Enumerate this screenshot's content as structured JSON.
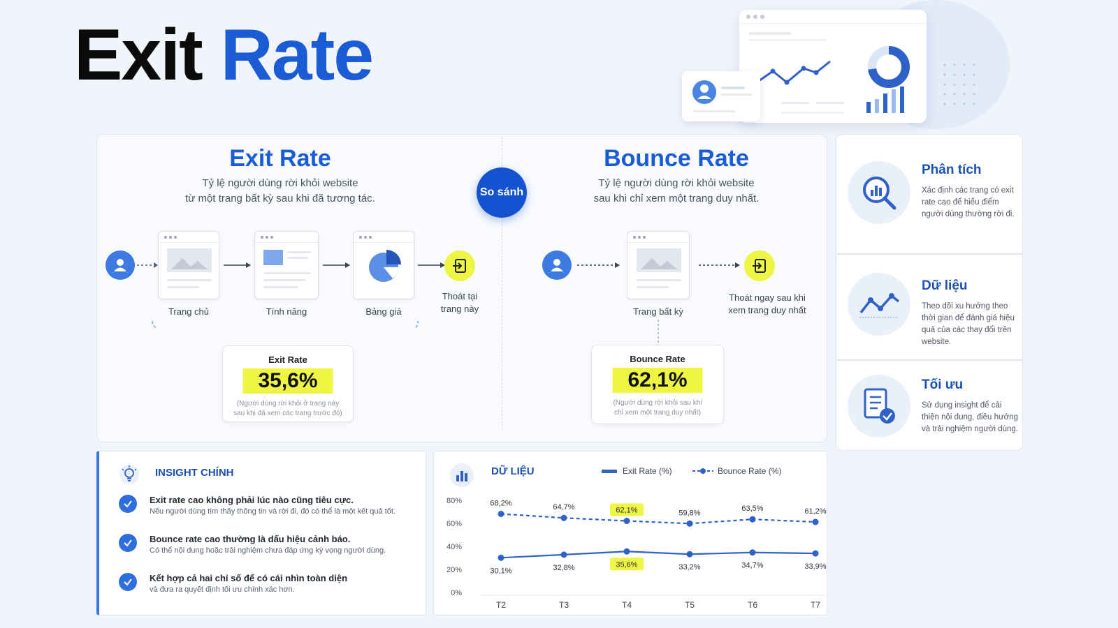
{
  "title": {
    "word1": "Exit",
    "word2": "Rate"
  },
  "comparison": {
    "exit": {
      "title": "Exit Rate",
      "desc_line1": "Tỷ lệ người dùng rời khỏi website",
      "desc_line2": "từ một trang bất kỳ sau khi đã tương tác.",
      "pages": [
        "Trang chủ",
        "Tính năng",
        "Bảng giá"
      ],
      "exit_label_line1": "Thoát tại",
      "exit_label_line2": "trang này",
      "result_title": "Exit Rate",
      "result_value": "35,6%",
      "result_note_line1": "(Người dùng rời khỏi ở trang này",
      "result_note_line2": "sau khi đã xem các trang trước đó)"
    },
    "compare_label": "So sánh",
    "bounce": {
      "title": "Bounce Rate",
      "desc_line1": "Tỷ lệ người dùng rời khỏi website",
      "desc_line2": "sau khi chỉ xem một trang duy nhất.",
      "page": "Trang bất kỳ",
      "exit_label_line1": "Thoát ngay sau khi",
      "exit_label_line2": "xem trang duy nhất",
      "result_title": "Bounce Rate",
      "result_value": "62,1%",
      "result_note_line1": "(Người dùng rời khỏi sau khi",
      "result_note_line2": "chỉ xem một trang duy nhất)"
    }
  },
  "side_cards": [
    {
      "title": "Phân tích",
      "text": "Xác định các trang có exit rate cao để hiểu điểm người dùng thường rời đi.",
      "icon": "magnifier-chart-icon"
    },
    {
      "title": "Dữ liệu",
      "text": "Theo dõi xu hướng theo thời gian để đánh giá hiệu quả của các thay đổi trên website.",
      "icon": "trend-line-icon"
    },
    {
      "title": "Tối ưu",
      "text": "Sử dụng insight để cải thiện nội dung, điều hướng và trải nghiệm người dùng.",
      "icon": "document-check-icon"
    }
  ],
  "insight": {
    "title": "INSIGHT CHÍNH",
    "items": [
      {
        "title": "Exit rate cao không phải lúc nào cũng tiêu cực.",
        "sub": "Nếu người dùng tìm thấy thông tin và rời đi, đó có thể là một kết quả tốt."
      },
      {
        "title": "Bounce rate cao thường là dấu hiệu cảnh báo.",
        "sub": "Có thể nội dung hoặc trải nghiệm chưa đáp ứng kỳ vọng người dùng."
      },
      {
        "title": "Kết hợp cả hai chỉ số để có cái nhìn toàn diện",
        "sub": "và đưa ra quyết định tối ưu chính xác hơn."
      }
    ]
  },
  "chart_data": {
    "type": "line",
    "title": "DỮ LIỆU",
    "categories": [
      "T2",
      "T3",
      "T4",
      "T5",
      "T6",
      "T7"
    ],
    "series": [
      {
        "name": "Exit Rate (%)",
        "values": [
          30.1,
          32.8,
          35.6,
          33.2,
          34.7,
          33.9
        ],
        "labels": [
          "30,1%",
          "32,8%",
          "35,6%",
          "33,2%",
          "34,7%",
          "33,9%"
        ],
        "style": "solid",
        "highlight_index": 2
      },
      {
        "name": "Bounce Rate (%)",
        "values": [
          68.2,
          64.7,
          62.1,
          59.8,
          63.5,
          61.2
        ],
        "labels": [
          "68,2%",
          "64,7%",
          "62,1%",
          "59,8%",
          "63,5%",
          "61,2%"
        ],
        "style": "dashed",
        "highlight_index": 2
      }
    ],
    "y_ticks": [
      "0%",
      "20%",
      "40%",
      "60%",
      "80%"
    ],
    "ylim": [
      0,
      80
    ],
    "legend_position": "top",
    "grid": false,
    "colors": {
      "line": "#2f62c9",
      "highlight": "#eef542"
    }
  },
  "colors": {
    "accent": "#1a5bd6",
    "highlight": "#eef542"
  }
}
